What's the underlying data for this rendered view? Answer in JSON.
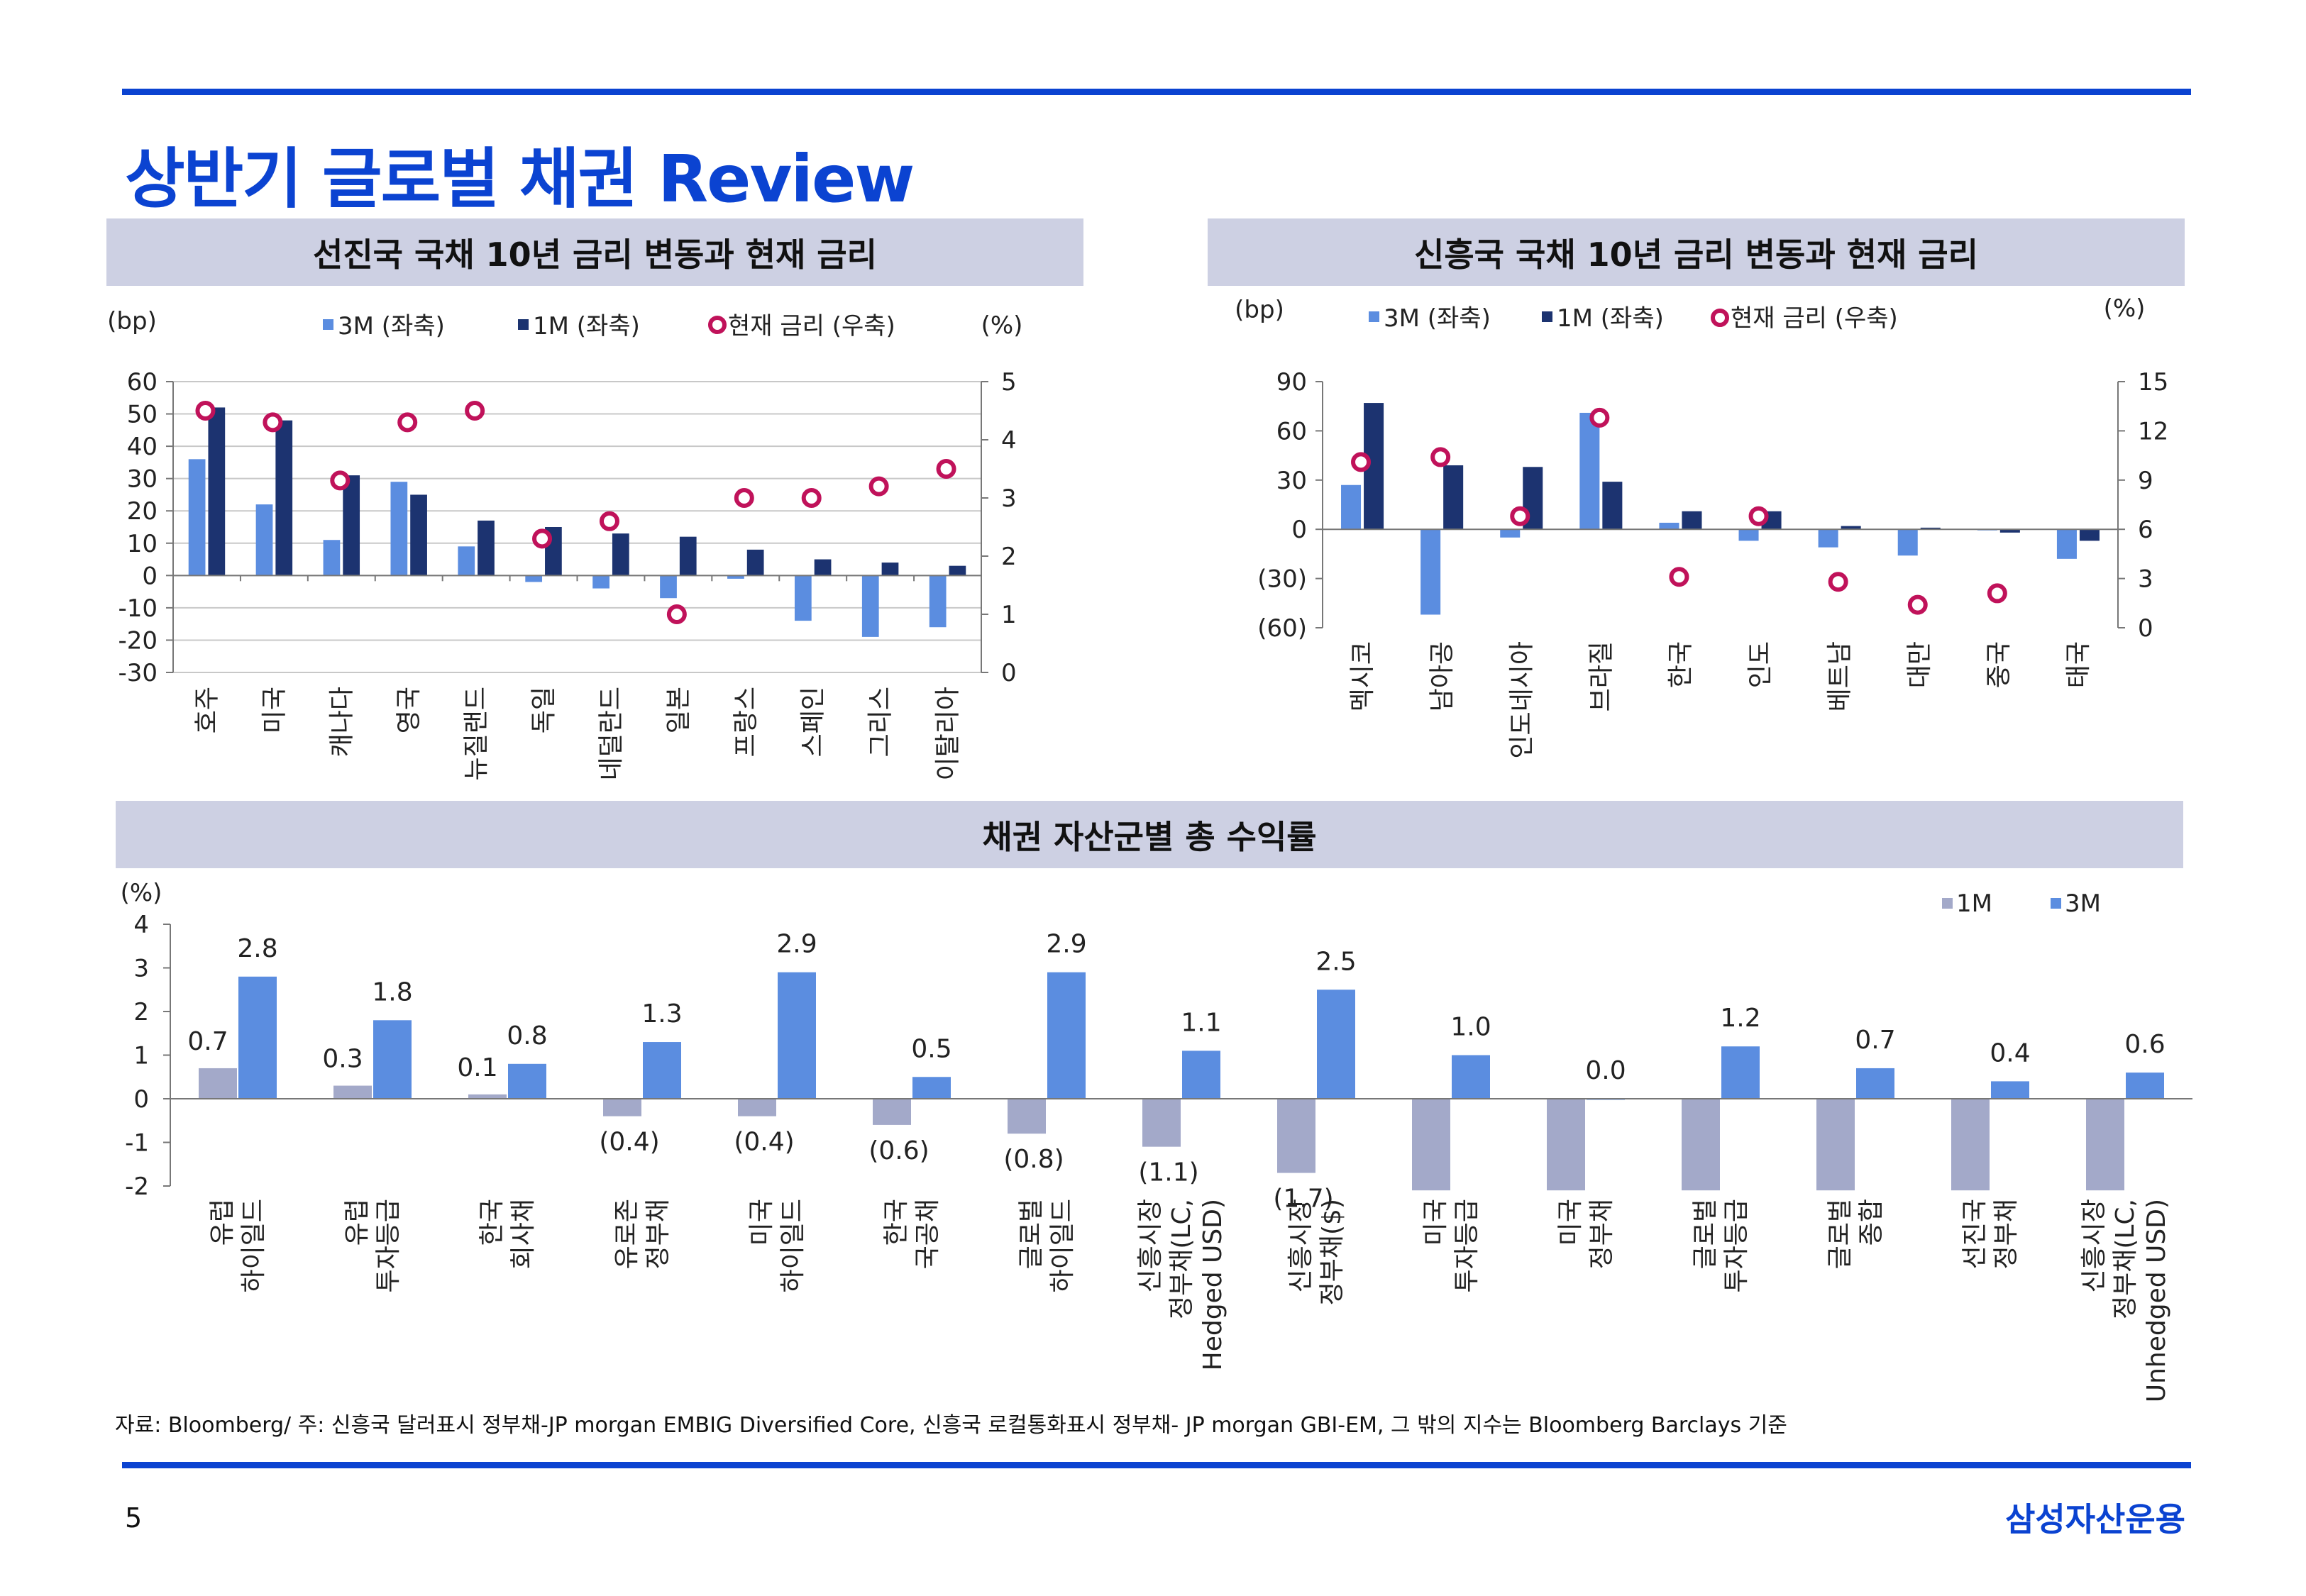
{
  "page": {
    "title": "상반기 글로벌 채권 Review",
    "footnote": "자료: Bloomberg/ 주: 신흥국 달러표시 정부채-JP morgan EMBIG Diversified Core, 신흥국 로컬통화표시 정부채- JP morgan GBI-EM, 그 밖의 지수는 Bloomberg Barclays 기준",
    "page_number": "5",
    "brand": "삼성자산운용"
  },
  "colors": {
    "accent": "#0b43d1",
    "band": "#cdd0e3",
    "light_blue": "#5b8de0",
    "navy": "#1c3370",
    "marker": "#c0125a",
    "grey_bar": "#a3a9c9"
  },
  "chart_data": [
    {
      "id": "developed",
      "type": "bar",
      "title": "선진국 국채 10년 금리 변동과 현재 금리",
      "left_unit": "(bp)",
      "right_unit": "(%)",
      "categories": [
        "호주",
        "미국",
        "캐나다",
        "영국",
        "뉴질랜드",
        "독일",
        "네덜란드",
        "일본",
        "프랑스",
        "스페인",
        "그리스",
        "이탈리아"
      ],
      "series": [
        {
          "name": "3M (좌축)",
          "axis": "left",
          "values": [
            36,
            22,
            11,
            29,
            9,
            -2,
            -4,
            -7,
            -1,
            -14,
            -19,
            -16
          ]
        },
        {
          "name": "1M (좌축)",
          "axis": "left",
          "values": [
            52,
            48,
            31,
            25,
            17,
            15,
            13,
            12,
            8,
            5,
            4,
            3
          ]
        },
        {
          "name": "현재 금리 (우축)",
          "axis": "right",
          "type": "scatter",
          "values": [
            4.5,
            4.3,
            3.3,
            4.3,
            4.5,
            2.3,
            2.6,
            1.0,
            3.0,
            3.0,
            3.2,
            3.5
          ]
        }
      ],
      "left_ylim": [
        -30,
        60
      ],
      "left_ticks": [
        "-30",
        "-20",
        "-10",
        "0",
        "10",
        "20",
        "30",
        "40",
        "50",
        "60"
      ],
      "right_ylim": [
        0,
        5
      ],
      "right_ticks": [
        "0",
        "1",
        "2",
        "3",
        "4",
        "5"
      ]
    },
    {
      "id": "emerging",
      "type": "bar",
      "title": "신흥국 국채 10년 금리 변동과 현재 금리",
      "left_unit": "(bp)",
      "right_unit": "(%)",
      "categories": [
        "멕시코",
        "남아공",
        "인도네시아",
        "브라질",
        "한국",
        "인도",
        "베트남",
        "대만",
        "중국",
        "태국"
      ],
      "series": [
        {
          "name": "3M (좌축)",
          "axis": "left",
          "values": [
            27,
            -52,
            -5,
            71,
            4,
            -7,
            -11,
            -16,
            0,
            -18
          ]
        },
        {
          "name": "1M (좌축)",
          "axis": "left",
          "values": [
            77,
            39,
            38,
            29,
            11,
            11,
            2,
            1,
            -2,
            -7
          ]
        },
        {
          "name": "현재 금리 (우축)",
          "axis": "right",
          "type": "scatter",
          "values": [
            10.1,
            10.4,
            6.8,
            12.8,
            3.1,
            6.8,
            2.8,
            1.4,
            2.1,
            null
          ]
        }
      ],
      "left_ylim": [
        -60,
        90
      ],
      "left_ticks": [
        "(60)",
        "(30)",
        "0",
        "30",
        "60",
        "90"
      ],
      "right_ylim": [
        0,
        15
      ],
      "right_ticks": [
        "0",
        "3",
        "6",
        "9",
        "12",
        "15"
      ]
    },
    {
      "id": "returns",
      "type": "bar",
      "title": "채권 자산군별 총 수익률",
      "left_unit": "(%)",
      "categories": [
        [
          "유럽",
          "하이일드"
        ],
        [
          "유럽",
          "투자등급"
        ],
        [
          "한국",
          "회사채"
        ],
        [
          "유로존",
          "정부채"
        ],
        [
          "미국",
          "하이일드"
        ],
        [
          "한국",
          "국공채"
        ],
        [
          "글로벌",
          "하이일드"
        ],
        [
          "신흥시장",
          "정부채(LC,",
          "Hedged USD)"
        ],
        [
          "신흥시장",
          "정부채($)"
        ],
        [
          "미국",
          "투자등급"
        ],
        [
          "미국",
          "정부채"
        ],
        [
          "글로벌",
          "투자등급"
        ],
        [
          "글로벌",
          "종합"
        ],
        [
          "선진국",
          "정부채"
        ],
        [
          "신흥시장",
          "정부채(LC,",
          "Unhedged USD)"
        ]
      ],
      "series": [
        {
          "name": "1M",
          "values": [
            0.7,
            0.3,
            0.1,
            -0.4,
            -0.4,
            -0.6,
            -0.8,
            -1.1,
            -1.7,
            -2.1,
            -2.1,
            -2.1,
            -2.1,
            -2.1,
            -2.1
          ]
        },
        {
          "name": "3M",
          "values": [
            2.8,
            1.8,
            0.8,
            1.3,
            2.9,
            0.5,
            2.9,
            1.1,
            2.5,
            1.0,
            0.0,
            1.2,
            0.7,
            0.4,
            0.6
          ]
        }
      ],
      "data_labels_1m": [
        "0.7",
        "0.3",
        "0.1",
        "(0.4)",
        "(0.4)",
        "(0.6)",
        "(0.8)",
        "(1.1)",
        "(1.7)",
        "",
        "",
        "",
        "",
        "",
        ""
      ],
      "data_labels_3m": [
        "2.8",
        "1.8",
        "0.8",
        "1.3",
        "2.9",
        "0.5",
        "2.9",
        "1.1",
        "2.5",
        "1.0",
        "0.0",
        "1.2",
        "0.7",
        "0.4",
        "0.6"
      ],
      "ylim": [
        -2,
        4
      ],
      "ticks": [
        "-2",
        "-1",
        "0",
        "1",
        "2",
        "3",
        "4"
      ]
    }
  ]
}
